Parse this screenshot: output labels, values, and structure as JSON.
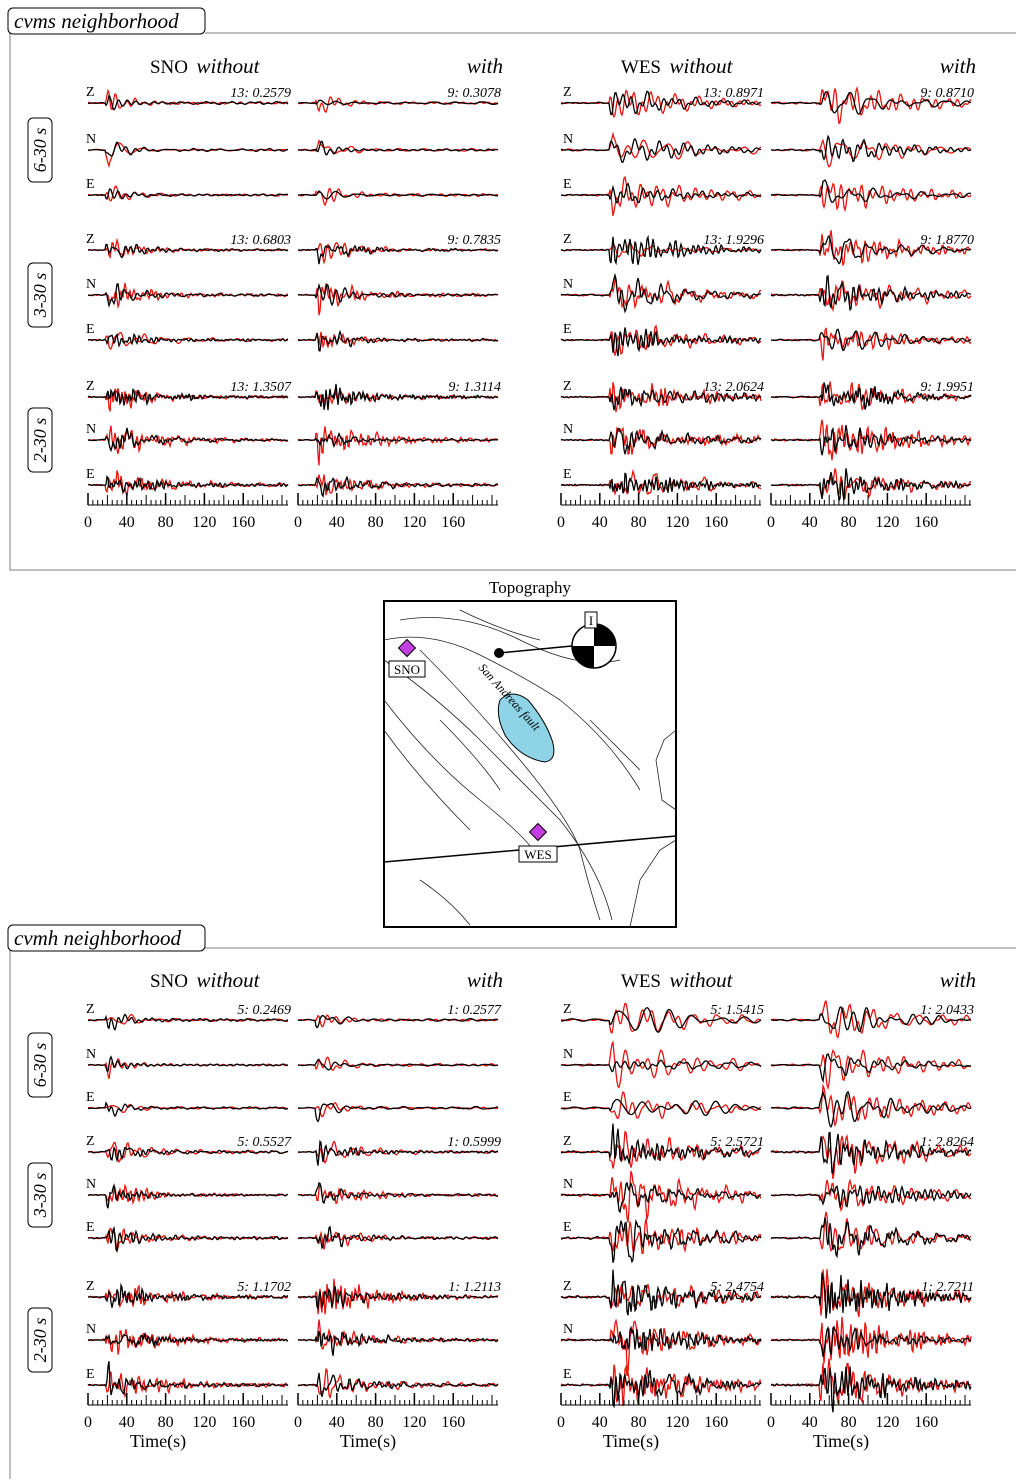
{
  "panels": [
    {
      "title": "cvms neighborhood",
      "stations": [
        {
          "name": "SNO",
          "without": "without",
          "with": "with",
          "scores": [
            [
              "13: 0.2579",
              "9: 0.3078"
            ],
            [
              "13: 0.6803",
              "9: 0.7835"
            ],
            [
              "13: 1.3507",
              "9: 1.3114"
            ]
          ]
        },
        {
          "name": "WES",
          "without": "without",
          "with": "with",
          "scores": [
            [
              "13: 0.8971",
              "9: 0.8710"
            ],
            [
              "13: 1.9296",
              "9: 1.8770"
            ],
            [
              "13: 2.0624",
              "9: 1.9951"
            ]
          ]
        }
      ],
      "bands": [
        "6-30 s",
        "3-30 s",
        "2-30 s"
      ]
    },
    {
      "title": "cvmh neighborhood",
      "stations": [
        {
          "name": "SNO",
          "without": "without",
          "with": "with",
          "scores": [
            [
              "5: 0.2469",
              "1: 0.2577"
            ],
            [
              "5: 0.5527",
              "1: 0.5999"
            ],
            [
              "5: 1.1702",
              "1: 1.2113"
            ]
          ]
        },
        {
          "name": "WES",
          "without": "without",
          "with": "with",
          "scores": [
            [
              "5: 1.5415",
              "1: 2.0433"
            ],
            [
              "5: 2.5721",
              "1: 2.8264"
            ],
            [
              "5: 2.4754",
              "1: 2.7211"
            ]
          ]
        }
      ],
      "bands": [
        "6-30 s",
        "3-30 s",
        "2-30 s"
      ],
      "xlabel": "Time(s)"
    }
  ],
  "components": [
    "Z",
    "N",
    "E"
  ],
  "xticks": [
    0,
    40,
    80,
    120,
    160
  ],
  "map": {
    "title": "Topography",
    "stations": [
      "SNO",
      "WES"
    ],
    "fault": "San Andreas fault",
    "event": "I"
  }
}
